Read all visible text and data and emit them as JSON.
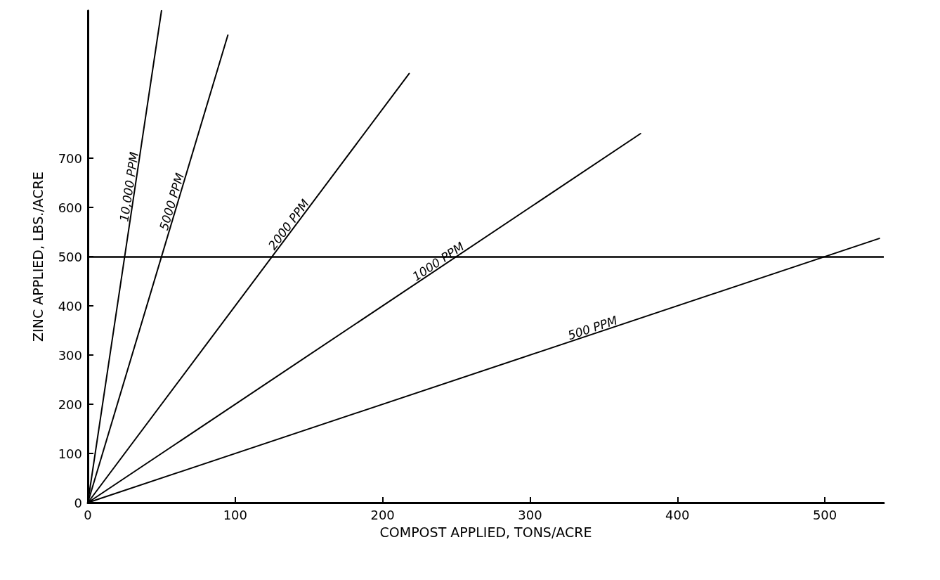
{
  "chart_data": {
    "type": "line",
    "xlabel": "COMPOST APPLIED, TONS/ACRE",
    "ylabel": "ZINC APPLIED, LBS./ACRE",
    "xlim": [
      0,
      540
    ],
    "ylim": [
      0,
      1000
    ],
    "xticks": [
      0,
      100,
      200,
      300,
      400,
      500
    ],
    "yticks": [
      0,
      100,
      200,
      300,
      400,
      500,
      600,
      700
    ],
    "marker": "none",
    "legend": false,
    "line_style": "solid",
    "series": [
      {
        "name": "10,000 PPM",
        "color": "#000000",
        "x": [
          0,
          50
        ],
        "values": [
          0,
          1000
        ]
      },
      {
        "name": "5000 PPM",
        "color": "#000000",
        "x": [
          0,
          95
        ],
        "values": [
          0,
          950
        ]
      },
      {
        "name": "2000 PPM",
        "color": "#000000",
        "x": [
          0,
          218
        ],
        "values": [
          0,
          872
        ]
      },
      {
        "name": "1000 PPM",
        "color": "#000000",
        "x": [
          0,
          375
        ],
        "values": [
          0,
          750
        ]
      },
      {
        "name": "500 PPM",
        "color": "#000000",
        "x": [
          0,
          537
        ],
        "values": [
          0,
          537
        ]
      }
    ],
    "ref_lines": [
      {
        "axis": "y",
        "value": 500,
        "color": "#000000",
        "line_style": "solid"
      }
    ]
  }
}
